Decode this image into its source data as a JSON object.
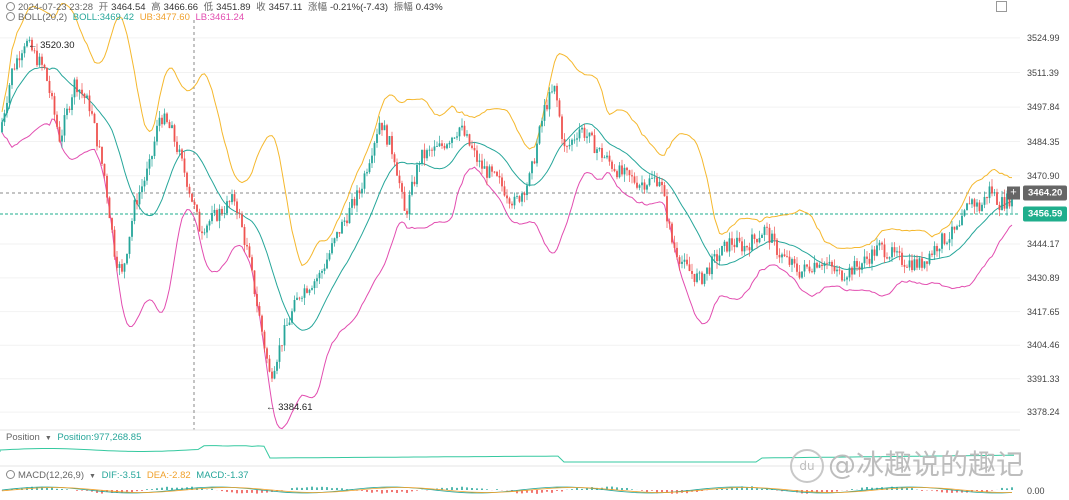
{
  "header": {
    "datetime": "2024-07-23 23:28",
    "open_label": "开",
    "open": "3464.54",
    "high_label": "高",
    "high": "3466.66",
    "low_label": "低",
    "low": "3451.89",
    "close_label": "收",
    "close": "3457.11",
    "change_label": "涨幅",
    "change": "-0.21%(-7.43)",
    "amp_label": "振幅",
    "amp": "0.43%"
  },
  "boll": {
    "label": "BOLL(20,2)",
    "mid": "BOLL:3469.42",
    "ub": "UB:3477.60",
    "lb": "LB:3461.24"
  },
  "position": {
    "label": "Position",
    "value": "Position:977,268.85"
  },
  "macd": {
    "label": "MACD(12,26,9)",
    "dif": "DIF:-3.51",
    "dea": "DEA:-2.82",
    "macd": "MACD:-1.37"
  },
  "price_axis": [
    "3524.99",
    "3511.39",
    "3497.84",
    "3484.35",
    "3470.90",
    "3444.17",
    "3430.89",
    "3417.65",
    "3404.46",
    "3391.33",
    "3378.24"
  ],
  "macd_axis": "0.00",
  "tags": {
    "crosshair": "3464.20",
    "last": "3456.59"
  },
  "extremes": {
    "high": "3520.30",
    "low": "3384.61"
  },
  "watermark": "@冰趣说的趣记",
  "colors": {
    "up": "#26a69a",
    "down": "#ef5350",
    "ub": "#f5b82e",
    "lb": "#e24db0",
    "mid": "#26a69a",
    "last": "#1fae8c",
    "crosshair": "#666666"
  },
  "chart_data": {
    "type": "candlestick",
    "indicators": [
      "BOLL(20,2)",
      "Position",
      "MACD(12,26,9)"
    ],
    "ylim": [
      3372,
      3532
    ],
    "anchors": [
      [
        0,
        3488
      ],
      [
        12,
        3512
      ],
      [
        25,
        3524
      ],
      [
        45,
        3512
      ],
      [
        60,
        3485
      ],
      [
        75,
        3508
      ],
      [
        90,
        3498
      ],
      [
        105,
        3470
      ],
      [
        115,
        3440
      ],
      [
        122,
        3432
      ],
      [
        135,
        3460
      ],
      [
        150,
        3475
      ],
      [
        160,
        3495
      ],
      [
        172,
        3488
      ],
      [
        185,
        3472
      ],
      [
        200,
        3450
      ],
      [
        215,
        3455
      ],
      [
        235,
        3462
      ],
      [
        248,
        3440
      ],
      [
        262,
        3410
      ],
      [
        270,
        3392
      ],
      [
        285,
        3410
      ],
      [
        300,
        3425
      ],
      [
        320,
        3432
      ],
      [
        340,
        3450
      ],
      [
        360,
        3465
      ],
      [
        380,
        3493
      ],
      [
        395,
        3478
      ],
      [
        405,
        3455
      ],
      [
        420,
        3478
      ],
      [
        440,
        3482
      ],
      [
        460,
        3490
      ],
      [
        480,
        3475
      ],
      [
        500,
        3468
      ],
      [
        515,
        3460
      ],
      [
        530,
        3470
      ],
      [
        545,
        3498
      ],
      [
        555,
        3505
      ],
      [
        565,
        3480
      ],
      [
        580,
        3490
      ],
      [
        600,
        3480
      ],
      [
        620,
        3472
      ],
      [
        640,
        3468
      ],
      [
        660,
        3470
      ],
      [
        672,
        3445
      ],
      [
        685,
        3435
      ],
      [
        700,
        3430
      ],
      [
        715,
        3438
      ],
      [
        730,
        3445
      ],
      [
        745,
        3443
      ],
      [
        765,
        3450
      ],
      [
        780,
        3440
      ],
      [
        800,
        3433
      ],
      [
        820,
        3438
      ],
      [
        840,
        3432
      ],
      [
        860,
        3436
      ],
      [
        880,
        3443
      ],
      [
        900,
        3438
      ],
      [
        920,
        3436
      ],
      [
        940,
        3445
      ],
      [
        960,
        3450
      ],
      [
        970,
        3462
      ],
      [
        980,
        3458
      ],
      [
        990,
        3466
      ],
      [
        1000,
        3460
      ],
      [
        1010,
        3462
      ]
    ]
  }
}
